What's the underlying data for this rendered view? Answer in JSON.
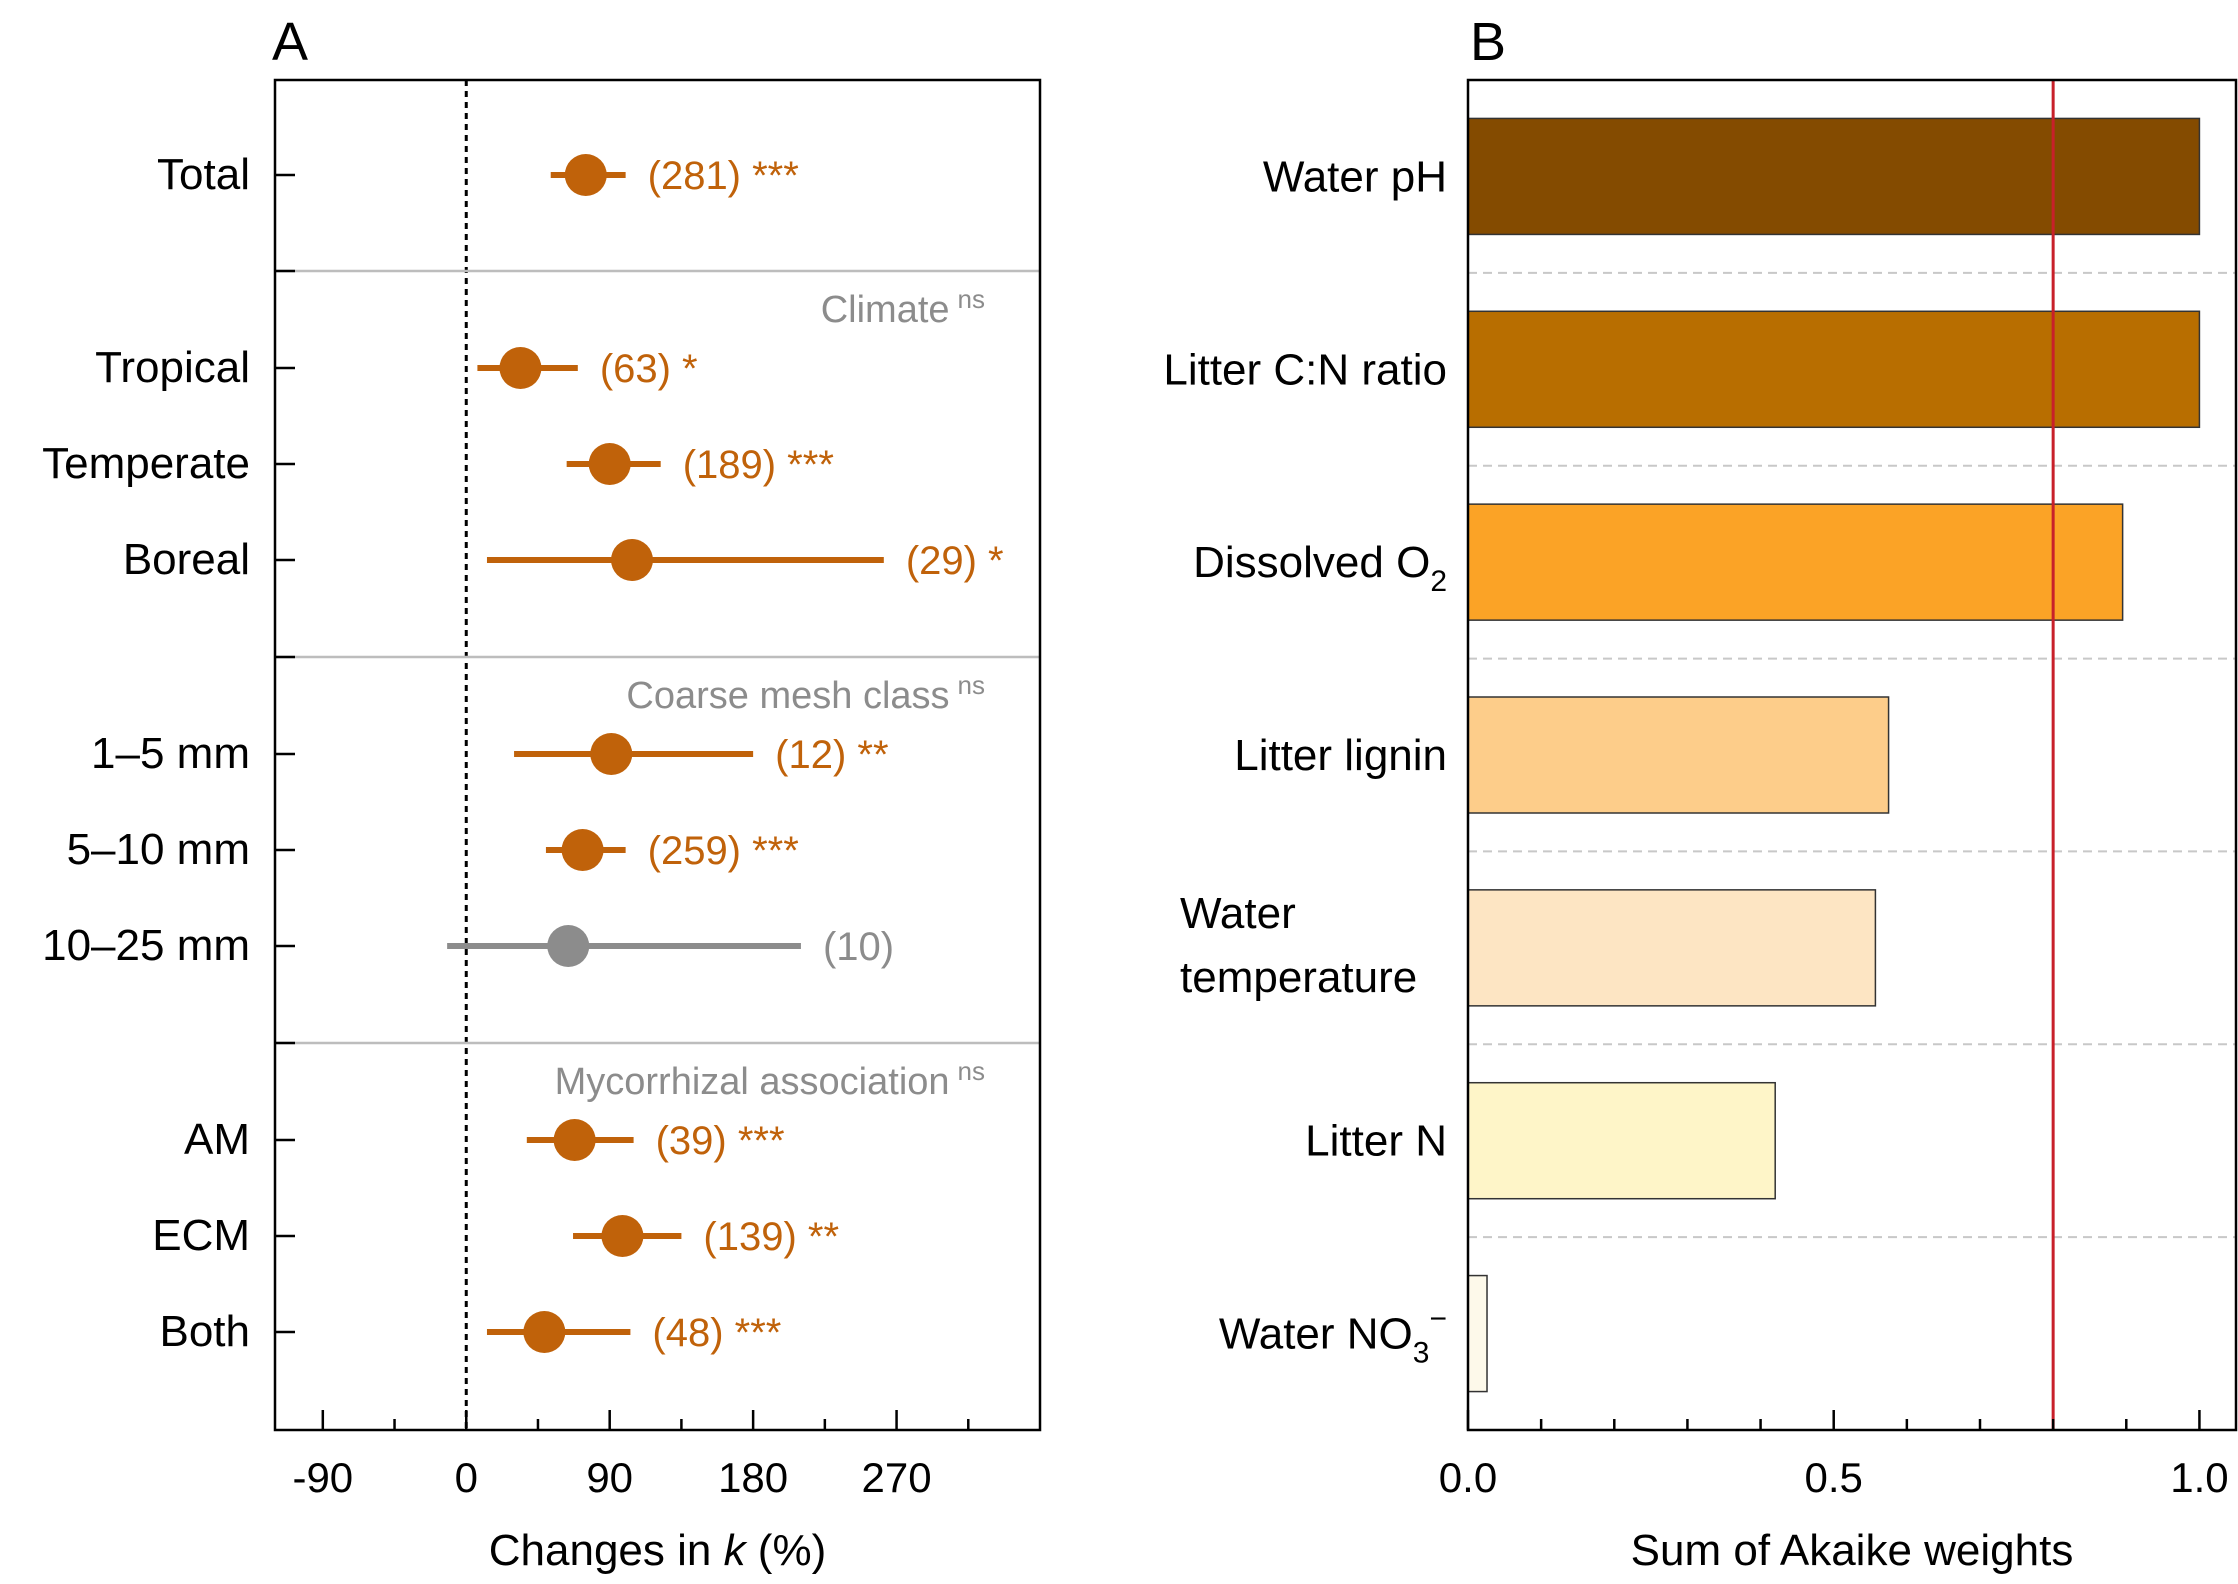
{
  "chart_data": [
    {
      "panel": "A",
      "type": "forest",
      "xlabel_prefix": "Changes in ",
      "xlabel_italic": "k",
      "xlabel_suffix": " (%)",
      "xlim": [
        -120,
        360
      ],
      "xticks": [
        -90,
        0,
        90,
        180,
        270
      ],
      "reference_line": 0,
      "groups": [
        {
          "title": "",
          "ns": ""
        },
        {
          "title": "Climate",
          "ns": "ns"
        },
        {
          "title": "Coarse mesh class",
          "ns": "ns"
        },
        {
          "title": "Mycorrhizal association",
          "ns": "ns"
        }
      ],
      "rows": [
        {
          "label": "Total",
          "group": 0,
          "mean": 75,
          "lo": 53,
          "hi": 100,
          "n_label": "(281) ***",
          "significant": true
        },
        {
          "label": "Tropical",
          "group": 1,
          "mean": 34,
          "lo": 7,
          "hi": 70,
          "n_label": "(63) *",
          "significant": true
        },
        {
          "label": "Temperate",
          "group": 1,
          "mean": 90,
          "lo": 63,
          "hi": 122,
          "n_label": "(189) ***",
          "significant": true
        },
        {
          "label": "Boreal",
          "group": 1,
          "mean": 104,
          "lo": 13,
          "hi": 262,
          "n_label": "(29) *",
          "significant": true
        },
        {
          "label": "1–5 mm",
          "group": 2,
          "mean": 91,
          "lo": 30,
          "hi": 180,
          "n_label": "(12) **",
          "significant": true
        },
        {
          "label": "5–10 mm",
          "group": 2,
          "mean": 73,
          "lo": 50,
          "hi": 100,
          "n_label": "(259) ***",
          "significant": true
        },
        {
          "label": "10–25 mm",
          "group": 2,
          "mean": 64,
          "lo": -12,
          "hi": 210,
          "n_label": "(10)",
          "significant": false
        },
        {
          "label": "AM",
          "group": 3,
          "mean": 68,
          "lo": 38,
          "hi": 105,
          "n_label": "(39) ***",
          "significant": true
        },
        {
          "label": "ECM",
          "group": 3,
          "mean": 98,
          "lo": 67,
          "hi": 135,
          "n_label": "(139) **",
          "significant": true
        },
        {
          "label": "Both",
          "group": 3,
          "mean": 49,
          "lo": 13,
          "hi": 103,
          "n_label": "(48) ***",
          "significant": true
        }
      ],
      "colors": {
        "significant": "#C0620A",
        "nonsignificant": "#8C8C8C",
        "group_title": "#8C8C8C"
      }
    },
    {
      "panel": "B",
      "type": "bar",
      "orientation": "horizontal",
      "xlabel": "Sum of Akaike weights",
      "xlim": [
        0,
        1.05
      ],
      "xticks": [
        "0.0",
        "0.5",
        "1.0"
      ],
      "threshold": 0.8,
      "threshold_color": "#C8202A",
      "categories": [
        {
          "label": "Water pH",
          "sub": "",
          "sup": "",
          "value": 1.0,
          "color": "#844B00"
        },
        {
          "label": "Litter C:N ratio",
          "sub": "",
          "sup": "",
          "value": 1.0,
          "color": "#B86E00"
        },
        {
          "label": "Dissolved O",
          "sub": "2",
          "sup": "",
          "value": 0.895,
          "color": "#FBA326"
        },
        {
          "label": "Litter lignin",
          "sub": "",
          "sup": "",
          "value": 0.575,
          "color": "#FDCD8A"
        },
        {
          "label": "Water temperature",
          "sub": "",
          "sup": "",
          "value": 0.557,
          "color": "#FDE5C3"
        },
        {
          "label": "Litter N",
          "sub": "",
          "sup": "",
          "value": 0.42,
          "color": "#FEF5C8"
        },
        {
          "label": "Water NO",
          "sub": "3",
          "sup": "−",
          "value": 0.026,
          "color": "#FDF9EA"
        }
      ]
    }
  ]
}
